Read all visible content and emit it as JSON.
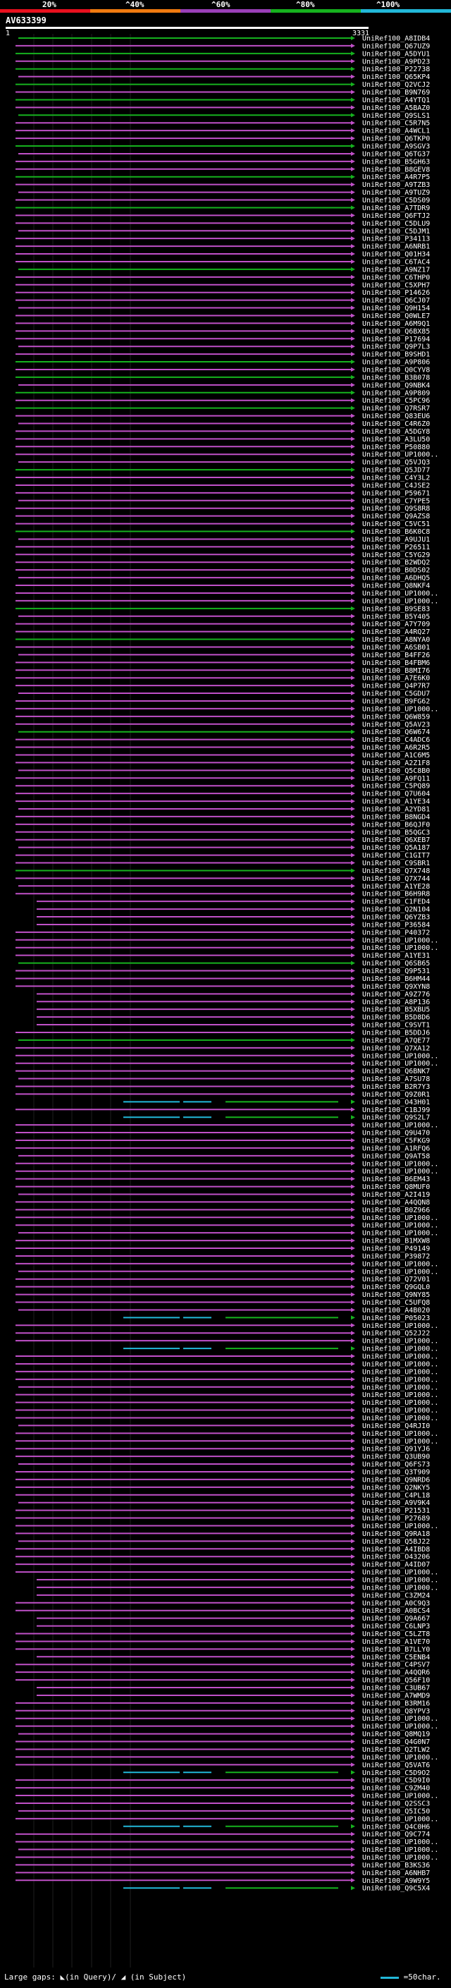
{
  "legend": {
    "scale_labels": [
      "20%",
      "^40%",
      "^60%",
      "^80%",
      "^100%"
    ],
    "colors": [
      "#e8101e",
      "#f07a10",
      "#9a3fb8",
      "#16b21e",
      "#22b8d8"
    ]
  },
  "query": {
    "name": "AV633399",
    "start": "1",
    "end": "3331"
  },
  "hits": [
    "UniRef100_A8IDB4",
    "UniRef100_Q67UZ9",
    "UniRef100_A5DYU1",
    "UniRef100_A9PD23",
    "UniRef100_P22738",
    "UniRef100_Q65KP4",
    "UniRef100_Q2VCJ2",
    "UniRef100_B9N769",
    "UniRef100_A4YTQ1",
    "UniRef100_A5BAZ0",
    "UniRef100_Q9SLS1",
    "UniRef100_C5R7N5",
    "UniRef100_A4WCL1",
    "UniRef100_Q6TKP0",
    "UniRef100_A9SGV3",
    "UniRef100_Q6TG37",
    "UniRef100_B5GH63",
    "UniRef100_B8GEV8",
    "UniRef100_A4R7P5",
    "UniRef100_A9TZB3",
    "UniRef100_A9TUZ9",
    "UniRef100_C5DS09",
    "UniRef100_A7TDR9",
    "UniRef100_Q6FTJ2",
    "UniRef100_C5DLU9",
    "UniRef100_C5DJM1",
    "UniRef100_P34113",
    "UniRef100_A6NRB1",
    "UniRef100_Q01H34",
    "UniRef100_C6TAC4",
    "UniRef100_A9NZ17",
    "UniRef100_C6THP0",
    "UniRef100_C5XPH7",
    "UniRef100_P14626",
    "UniRef100_Q6CJ07",
    "UniRef100_Q9H154",
    "UniRef100_Q0WLE7",
    "UniRef100_A6M9Q1",
    "UniRef100_Q6BX85",
    "UniRef100_P17694",
    "UniRef100_Q9P7L3",
    "UniRef100_B9SHD1",
    "UniRef100_A9P806",
    "UniRef100_Q0CYV8",
    "UniRef100_B3B078",
    "UniRef100_Q9NBK4",
    "UniRef100_A9P809",
    "UniRef100_C5PC96",
    "UniRef100_Q7RSR7",
    "UniRef100_Q83EU6",
    "UniRef100_C4R6Z0",
    "UniRef100_A5DGY8",
    "UniRef100_A3LU50",
    "UniRef100_P50880",
    "UniRef100_UP1000..",
    "UniRef100_Q5VJQ3",
    "UniRef100_Q5JD77",
    "UniRef100_C4Y3L2",
    "UniRef100_C4JSE2",
    "UniRef100_P59671",
    "UniRef100_C7YPE5",
    "UniRef100_Q9S8R8",
    "UniRef100_Q9AZS8",
    "UniRef100_C5VC51",
    "UniRef100_B6K0C8",
    "UniRef100_A9UJU1",
    "UniRef100_P26511",
    "UniRef100_C5YG29",
    "UniRef100_B2WDQ2",
    "UniRef100_B0DS02",
    "UniRef100_A6DHQ5",
    "UniRef100_Q8NKF4",
    "UniRef100_UP1000..",
    "UniRef100_UP1000..",
    "UniRef100_B9SE83",
    "UniRef100_B5Y405",
    "UniRef100_A7Y709",
    "UniRef100_A4RQ27",
    "UniRef100_A8NYA0",
    "UniRef100_A6SB01",
    "UniRef100_B4FF26",
    "UniRef100_B4FBM6",
    "UniRef100_B8MI76",
    "UniRef100_A7E6K0",
    "UniRef100_Q4P7R7",
    "UniRef100_C5GDU7",
    "UniRef100_B9FG62",
    "UniRef100_UP1000..",
    "UniRef100_Q6W859",
    "UniRef100_Q5AV23",
    "UniRef100_Q6W674",
    "UniRef100_C4ADC6",
    "UniRef100_A6R2R5",
    "UniRef100_A1C6M5",
    "UniRef100_A2Z1F8",
    "UniRef100_Q5C8B0",
    "UniRef100_A9FQ11",
    "UniRef100_C5PQ89",
    "UniRef100_Q7U604",
    "UniRef100_A1YE34",
    "UniRef100_A2YD81",
    "UniRef100_B8NGD4",
    "UniRef100_B6QJF0",
    "UniRef100_B5QGC3",
    "UniRef100_Q6XEB7",
    "UniRef100_Q5A187",
    "UniRef100_C1GIT7",
    "UniRef100_C9SBR1",
    "UniRef100_Q7X748",
    "UniRef100_Q7X744",
    "UniRef100_A1YE28",
    "UniRef100_B6H9R8",
    "UniRef100_C1FED4",
    "UniRef100_Q2N104",
    "UniRef100_Q6YZB3",
    "UniRef100_P36584",
    "UniRef100_P40372",
    "UniRef100_UP1000..",
    "UniRef100_UP1000..",
    "UniRef100_A1YE31",
    "UniRef100_Q6SB65",
    "UniRef100_Q9P531",
    "UniRef100_B6HM44",
    "UniRef100_Q9XYN8",
    "UniRef100_A9Z776",
    "UniRef100_A8P136",
    "UniRef100_B5XBU5",
    "UniRef100_B5D8D6",
    "UniRef100_C9SVT1",
    "UniRef100_B5DDJ6",
    "UniRef100_A7QE77",
    "UniRef100_Q7XA12",
    "UniRef100_UP1000..",
    "UniRef100_UP1000..",
    "UniRef100_Q6BNK7",
    "UniRef100_A7SU78",
    "UniRef100_B2R7Y3",
    "UniRef100_Q9Z0R1",
    "UniRef100_O43H01",
    "UniRef100_C1BJ99",
    "UniRef100_Q9S2L7",
    "UniRef100_UP1000..",
    "UniRef100_Q9U470",
    "UniRef100_C5FKG9",
    "UniRef100_A1RFQ6",
    "UniRef100_Q9AT58",
    "UniRef100_UP1000..",
    "UniRef100_UP1000..",
    "UniRef100_B6EM43",
    "UniRef100_Q8MUF0",
    "UniRef100_A2I419",
    "UniRef100_A4QQN8",
    "UniRef100_B0Z966",
    "UniRef100_UP1000..",
    "UniRef100_UP1000..",
    "UniRef100_UP1000..",
    "UniRef100_B1MXW8",
    "UniRef100_P49149",
    "UniRef100_P39872",
    "UniRef100_UP1000..",
    "UniRef100_UP1000..",
    "UniRef100_Q72V01",
    "UniRef100_Q9GQL0",
    "UniRef100_Q9NY85",
    "UniRef100_C5UFQ8",
    "UniRef100_A4B020",
    "UniRef100_P05023",
    "UniRef100_UP1000..",
    "UniRef100_Q52J22",
    "UniRef100_UP1000..",
    "UniRef100_UP1000..",
    "UniRef100_UP1000..",
    "UniRef100_UP1000..",
    "UniRef100_UP1000..",
    "UniRef100_UP1000..",
    "UniRef100_UP1000..",
    "UniRef100_UP1000..",
    "UniRef100_UP1000..",
    "UniRef100_UP1000..",
    "UniRef100_UP1000..",
    "UniRef100_Q4RJI0",
    "UniRef100_UP1000..",
    "UniRef100_UP1000..",
    "UniRef100_Q91YJ6",
    "UniRef100_Q3UB90",
    "UniRef100_Q6FS73",
    "UniRef100_Q3T909",
    "UniRef100_Q9NRD6",
    "UniRef100_Q2NKY5",
    "UniRef100_C4PL18",
    "UniRef100_A9V9K4",
    "UniRef100_P21531",
    "UniRef100_P27689",
    "UniRef100_UP1000..",
    "UniRef100_Q9RA18",
    "UniRef100_Q5BJ22",
    "UniRef100_A4IBD8",
    "UniRef100_O43206",
    "UniRef100_A4ID07",
    "UniRef100_UP1000..",
    "UniRef100_UP1000..",
    "UniRef100_UP1000..",
    "UniRef100_C3ZM24",
    "UniRef100_A0C9Q3",
    "UniRef100_A0BCS4",
    "UniRef100_Q9A667",
    "UniRef100_C6LNP3",
    "UniRef100_C5LZT8",
    "UniRef100_A1VE70",
    "UniRef100_B7LLY0",
    "UniRef100_C5ENB4",
    "UniRef100_C4PSV7",
    "UniRef100_A4QQR6",
    "UniRef100_Q56F10",
    "UniRef100_C3UB67",
    "UniRef100_A7WMD9",
    "UniRef100_B3RM16",
    "UniRef100_Q8YPV3",
    "UniRef100_UP1000..",
    "UniRef100_UP1000..",
    "UniRef100_Q8MQ19",
    "UniRef100_Q4G0N7",
    "UniRef100_Q2TLW2",
    "UniRef100_UP1000..",
    "UniRef100_Q5VAT6",
    "UniRef100_C5D9O2",
    "UniRef100_C5D9I0",
    "UniRef100_C9ZM40",
    "UniRef100_UP1000..",
    "UniRef100_Q2SSC3",
    "UniRef100_Q5IC50",
    "UniRef100_UP1000..",
    "UniRef100_Q4C0H6",
    "UniRef100_Q9C774",
    "UniRef100_UP1000..",
    "UniRef100_UP1000..",
    "UniRef100_UP1000..",
    "UniRef100_B3KS36",
    "UniRef100_A6NHB7",
    "UniRef100_A9W9Y5",
    "UniRef100_Q9C5X4"
  ],
  "footer": {
    "gaps_text": "Large gaps: ◣(in Query)/ ◢ (in Subject)",
    "scale_text": "=50char."
  }
}
